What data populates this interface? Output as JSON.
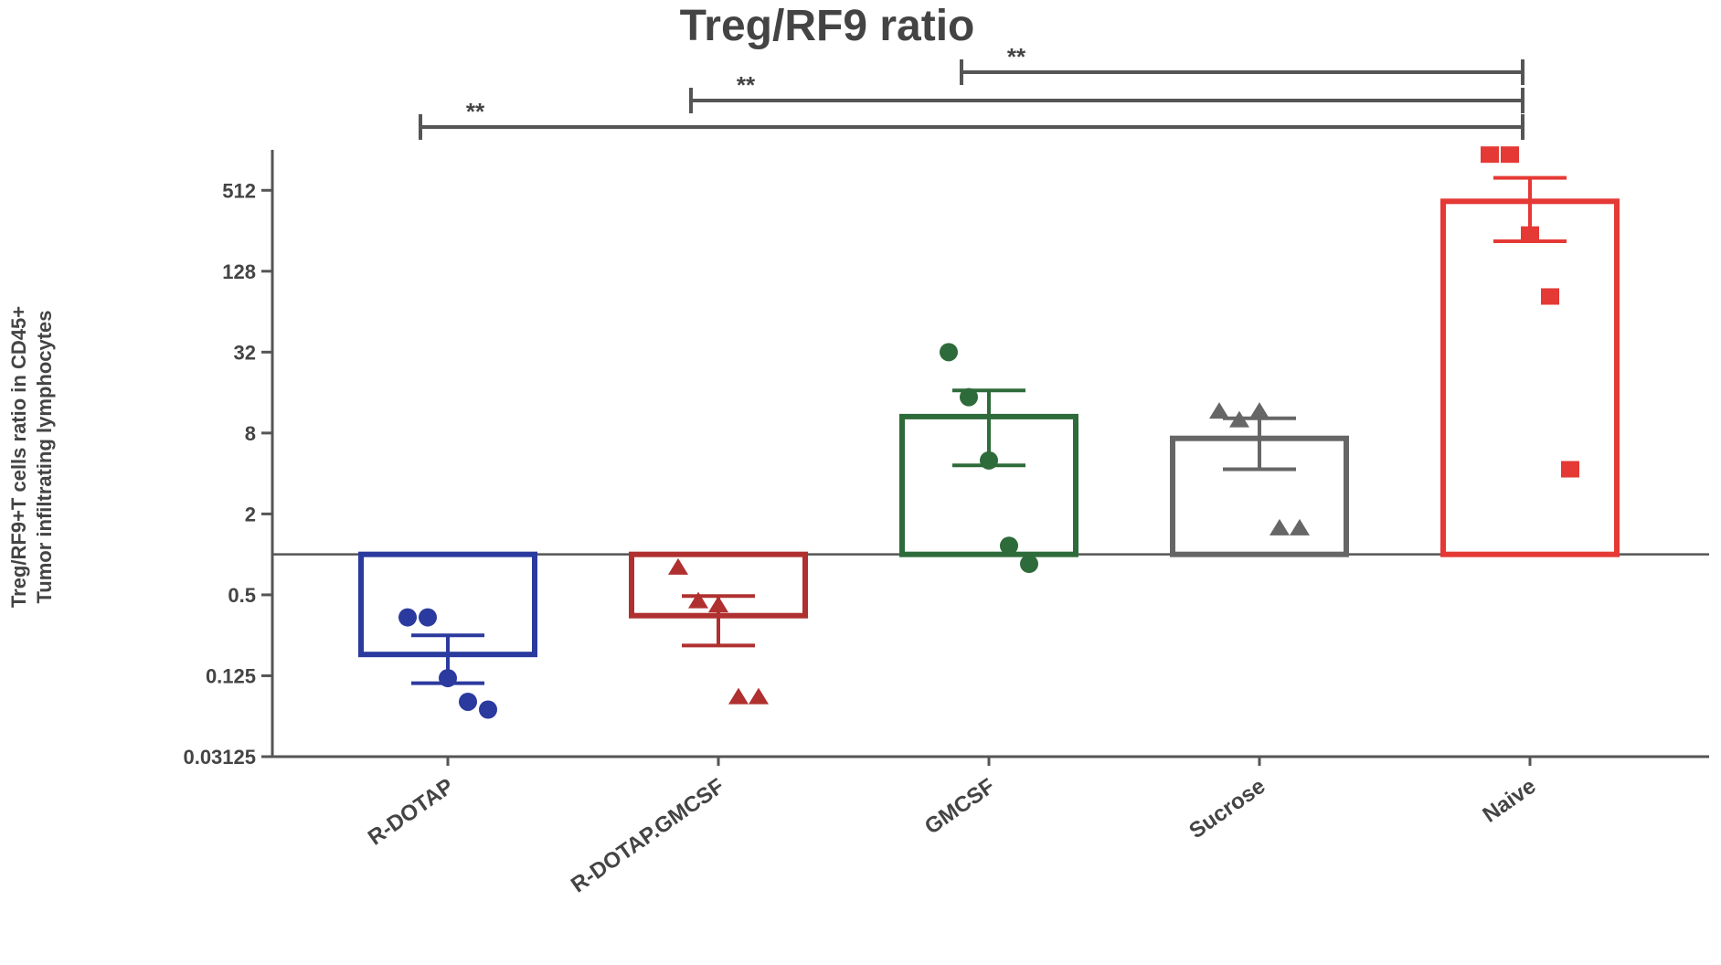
{
  "chart_data": {
    "type": "bar",
    "title": "Treg/RF9 ratio",
    "ylabel": [
      "Treg/RF9+T cells ratio in CD45+",
      "Tumor infiltrating lymphocytes"
    ],
    "categories": [
      "R-DOTAP",
      "R-DOTAP.GMCSF",
      "GMCSF",
      "Sucrose",
      "Naive"
    ],
    "values": [
      0.18,
      0.35,
      10.6,
      7.3,
      424
    ],
    "errors": [
      0.07,
      0.14,
      6,
      3,
      210
    ],
    "points": [
      [
        0.34,
        0.34,
        0.12,
        0.08,
        0.07
      ],
      [
        0.8,
        0.45,
        0.42,
        0.087,
        0.087
      ],
      [
        32,
        14.8,
        5,
        1.16,
        0.85
      ],
      [
        11.6,
        10,
        11.6,
        1.57,
        1.57
      ],
      [
        944,
        944,
        240,
        83,
        4.3
      ]
    ],
    "colors": [
      "#2b3a9e",
      "#b03030",
      "#2e6b3a",
      "#666666",
      "#e53935"
    ],
    "markers": [
      "circle",
      "triangle",
      "circle",
      "triangle",
      "square"
    ],
    "log_base": 2,
    "baseline": 1,
    "ylim": [
      0.03125,
      1024
    ],
    "yticks": [
      0.03125,
      0.125,
      0.5,
      2,
      8,
      32,
      128,
      512
    ],
    "comparisons": [
      {
        "label": "**",
        "from": 0,
        "to": 4
      },
      {
        "label": "**",
        "from": 1,
        "to": 4
      },
      {
        "label": "**",
        "from": 2,
        "to": 4
      }
    ]
  }
}
